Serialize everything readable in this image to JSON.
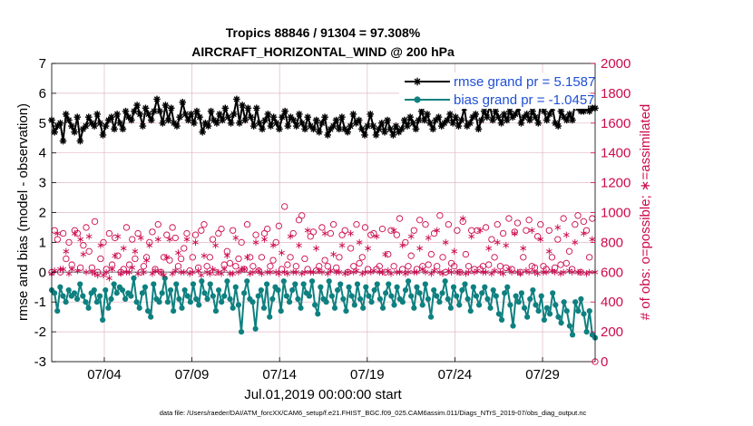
{
  "colors": {
    "rmse": "#000000",
    "bias": "#0f8080",
    "obs": "#cc0a4e",
    "legend_text": "#1f4fd6",
    "grid": "#e0b8c4",
    "zero_line": "#9aa0a6"
  },
  "footer": "data file: /Users/raeder/DAI/ATM_forcXX/CAM6_setup/f.e21.FHIST_BGC.f09_025.CAM6assim.011/Diags_NTrS_2019-07/obs_diag_output.nc",
  "chart_data": {
    "type": "line",
    "title": [
      "Tropics 88846 / 91304 = 97.308%",
      "AIRCRAFT_HORIZONTAL_WIND @ 200 hPa"
    ],
    "xlabel": "Jul.01,2019 00:00:00 start",
    "ylabel_left": "rmse and bias (model - observation)",
    "ylabel_right": "# of obs: o=possible; ∗=assimilated",
    "x_tick_labels": [
      "07/04",
      "07/09",
      "07/14",
      "07/19",
      "07/24",
      "07/29"
    ],
    "x_tick_days": [
      4,
      9,
      14,
      19,
      24,
      29
    ],
    "xlim_days": [
      1,
      32
    ],
    "ylim_left": [
      -3,
      7
    ],
    "yticks_left": [
      "-3",
      "-2",
      "-1",
      "0",
      "1",
      "2",
      "3",
      "4",
      "5",
      "6",
      "7"
    ],
    "ylim_right": [
      0,
      2000
    ],
    "yticks_right": [
      "0",
      "200",
      "400",
      "600",
      "800",
      "1000",
      "1200",
      "1400",
      "1600",
      "1800",
      "2000"
    ],
    "grid": true,
    "legend_position": "top-right",
    "legend": [
      "rmse grand pr = 5.1587",
      "bias grand pr = -1.0457"
    ],
    "series": [
      {
        "name": "rmse",
        "axis": "left",
        "marker": "star",
        "values": [
          5.1,
          4.7,
          4.9,
          5.0,
          4.4,
          5.3,
          5.1,
          4.9,
          4.7,
          5.2,
          4.4,
          4.8,
          4.9,
          5.2,
          5.0,
          4.9,
          5.3,
          5.0,
          4.6,
          4.9,
          5.1,
          5.2,
          4.8,
          5.3,
          5.0,
          4.8,
          5.4,
          5.2,
          5.1,
          5.4,
          5.6,
          5.3,
          4.9,
          5.5,
          5.3,
          5.1,
          5.4,
          5.8,
          5.4,
          5.0,
          5.6,
          5.1,
          5.5,
          5.0,
          4.9,
          5.2,
          5.7,
          5.3,
          5.1,
          5.3,
          5.0,
          5.4,
          5.2,
          4.7,
          5.0,
          4.9,
          5.4,
          5.1,
          5.0,
          5.3,
          5.1,
          5.5,
          5.2,
          5.0,
          5.3,
          5.8,
          5.0,
          5.6,
          5.1,
          5.5,
          5.2,
          4.9,
          5.5,
          5.0,
          4.8,
          5.1,
          5.3,
          4.9,
          5.2,
          5.0,
          4.8,
          5.2,
          5.4,
          4.9,
          5.2,
          5.1,
          4.9,
          5.3,
          5.0,
          4.8,
          5.2,
          4.9,
          4.8,
          5.1,
          4.7,
          5.0,
          5.2,
          4.6,
          4.8,
          4.9,
          5.1,
          4.8,
          5.2,
          4.8,
          4.7,
          4.9,
          5.3,
          5.0,
          5.1,
          4.8,
          4.6,
          4.9,
          5.3,
          4.9,
          4.6,
          4.8,
          5.0,
          4.7,
          5.1,
          4.8,
          4.6,
          4.9,
          4.7,
          4.8,
          5.1,
          4.9,
          5.2,
          5.0,
          4.8,
          5.1,
          5.4,
          5.1,
          5.3,
          5.0,
          4.8,
          5.1,
          5.2,
          4.9,
          5.0,
          5.1,
          5.3,
          5.0,
          5.2,
          4.9,
          5.1,
          5.5,
          4.9,
          5.0,
          5.2,
          5.3,
          4.8,
          5.1,
          5.4,
          5.2,
          5.6,
          5.1,
          5.4,
          5.2,
          5.0,
          5.3,
          5.1,
          5.4,
          5.2,
          5.3,
          5.5,
          5.0,
          5.2,
          5.3,
          5.1,
          5.4,
          5.2,
          5.0,
          5.8,
          5.4,
          5.1,
          5.3,
          5.5,
          5.0,
          4.9,
          5.4,
          5.2,
          5.1,
          5.3,
          5.1,
          5.7,
          5.5,
          5.4,
          5.4,
          5.5,
          5.4,
          5.5,
          5.5
        ]
      },
      {
        "name": "bias",
        "axis": "left",
        "marker": "circle",
        "values": [
          -0.6,
          -0.7,
          -1.3,
          -0.5,
          -0.8,
          -1.0,
          -0.6,
          -0.8,
          -0.7,
          -0.9,
          -0.4,
          -0.8,
          -1.0,
          -1.2,
          -0.7,
          -0.6,
          -1.0,
          -0.8,
          -1.6,
          -0.6,
          -1.2,
          -0.9,
          -0.4,
          -0.7,
          -0.5,
          -0.6,
          -0.9,
          -0.7,
          -0.8,
          -0.2,
          -1.0,
          -1.2,
          -0.7,
          -0.5,
          -1.3,
          -1.5,
          -0.4,
          -0.9,
          -1.0,
          -0.7,
          -0.2,
          -1.0,
          -0.6,
          -1.3,
          -0.4,
          -0.9,
          -1.2,
          -0.6,
          -0.8,
          -1.0,
          -0.4,
          -0.9,
          -1.1,
          -0.3,
          -0.7,
          -0.9,
          -0.4,
          -0.8,
          -1.3,
          -0.6,
          -1.0,
          -0.8,
          -0.3,
          -0.9,
          -1.2,
          -0.5,
          -1.1,
          -2.0,
          -0.7,
          -0.3,
          -0.9,
          -1.0,
          -1.9,
          -0.8,
          -0.6,
          -1.2,
          -0.4,
          -1.5,
          -0.9,
          -0.5,
          -0.6,
          -1.3,
          -0.3,
          -0.8,
          -1.0,
          -0.6,
          -0.4,
          -0.9,
          -1.2,
          -0.4,
          -0.7,
          -0.8,
          -0.3,
          -1.1,
          -1.4,
          -0.5,
          -0.9,
          -1.0,
          -0.3,
          -0.8,
          -1.2,
          -0.6,
          -0.4,
          -0.9,
          -1.3,
          -0.5,
          -0.8,
          -1.1,
          -0.4,
          -0.9,
          -1.2,
          -0.5,
          -0.8,
          -1.0,
          -0.6,
          -0.4,
          -0.9,
          -1.2,
          -0.7,
          -0.4,
          -0.8,
          -1.1,
          -0.5,
          -0.9,
          -1.0,
          -0.6,
          -0.3,
          -0.8,
          -1.2,
          -0.5,
          -0.7,
          -1.1,
          -0.4,
          -0.9,
          -1.5,
          -0.6,
          -0.8,
          -1.0,
          -0.7,
          -0.3,
          -0.9,
          -1.2,
          -0.5,
          -0.8,
          -1.1,
          -0.6,
          -0.4,
          -0.9,
          -1.3,
          -0.5,
          -0.8,
          -1.1,
          -0.7,
          -0.5,
          -0.9,
          -1.2,
          -0.6,
          -0.8,
          -1.4,
          -1.6,
          -0.7,
          -0.5,
          -1.1,
          -1.8,
          -0.8,
          -1.0,
          -0.7,
          -1.2,
          -1.5,
          -0.9,
          -0.6,
          -1.1,
          -1.3,
          -0.8,
          -1.6,
          -1.2,
          -1.4,
          -0.7,
          -1.1,
          -1.5,
          -1.7,
          -1.0,
          -1.3,
          -1.8,
          -2.1,
          -1.0,
          -1.3,
          -0.9,
          -1.4,
          -2.0,
          -1.3,
          -2.1,
          -2.2
        ]
      },
      {
        "name": "obs_possible",
        "axis": "right",
        "marker": "open-circle",
        "values": [
          600,
          880,
          820,
          600,
          860,
          690,
          800,
          650,
          880,
          860,
          630,
          780,
          900,
          740,
          630,
          940,
          600,
          690,
          800,
          620,
          860,
          650,
          830,
          710,
          600,
          620,
          900,
          650,
          820,
          690,
          860,
          600,
          640,
          700,
          800,
          870,
          620,
          920,
          600,
          700,
          850,
          680,
          900,
          830,
          640,
          690,
          760,
          860,
          610,
          700,
          850,
          630,
          880,
          920,
          640,
          700,
          820,
          600,
          860,
          890,
          650,
          740,
          660,
          880,
          640,
          690,
          800,
          620,
          920,
          700,
          640,
          850,
          610,
          700,
          860,
          890,
          640,
          680,
          800,
          910,
          620,
          1040,
          650,
          700,
          860,
          640,
          950,
          980,
          690,
          620,
          840,
          870,
          610,
          640,
          900,
          680,
          640,
          860,
          920,
          630,
          700,
          850,
          880,
          600,
          760,
          640,
          920,
          660,
          700,
          900,
          620,
          850,
          860,
          620,
          640,
          890,
          600,
          720,
          880,
          640,
          850,
          960,
          620,
          800,
          640,
          710,
          880,
          620,
          950,
          640,
          920,
          650,
          720,
          860,
          640,
          980,
          700,
          600,
          920,
          660,
          640,
          880,
          600,
          940,
          720,
          640,
          880,
          620,
          880,
          620,
          640,
          900,
          650,
          820,
          700,
          920,
          640,
          860,
          630,
          960,
          620,
          870,
          930,
          600,
          700,
          880,
          950,
          640,
          630,
          840,
          920,
          640,
          620,
          880,
          700,
          630,
          820,
          650,
          960,
          660,
          740,
          620,
          920,
          980,
          600,
          940,
          880,
          700,
          960,
          0
        ]
      },
      {
        "name": "obs_assimilated",
        "axis": "right",
        "marker": "asterisk",
        "values": [
          590,
          610,
          860,
          620,
          620,
          740,
          590,
          620,
          860,
          610,
          820,
          720,
          600,
          840,
          600,
          590,
          580,
          780,
          580,
          600,
          560,
          620,
          710,
          840,
          590,
          760,
          600,
          600,
          630,
          740,
          590,
          830,
          600,
          680,
          780,
          590,
          610,
          820,
          600,
          580,
          700,
          820,
          590,
          610,
          730,
          600,
          600,
          820,
          590,
          600,
          800,
          610,
          580,
          710,
          600,
          590,
          620,
          780,
          600,
          590,
          620,
          710,
          590,
          590,
          830,
          600,
          620,
          620,
          700,
          590,
          600,
          800,
          610,
          590,
          820,
          600,
          600,
          780,
          600,
          590,
          730,
          600,
          590,
          840,
          600,
          600,
          780,
          590,
          600,
          880,
          600,
          600,
          760,
          610,
          600,
          860,
          590,
          610,
          720,
          600,
          600,
          780,
          590,
          600,
          860,
          600,
          610,
          800,
          590,
          600,
          760,
          600,
          610,
          840,
          600,
          600,
          720,
          610,
          590,
          880,
          600,
          600,
          780,
          590,
          600,
          840,
          600,
          600,
          760,
          620,
          600,
          830,
          590,
          610,
          880,
          600,
          590,
          800,
          610,
          600,
          740,
          600,
          600,
          960,
          590,
          600,
          840,
          600,
          610,
          880,
          600,
          600,
          760,
          590,
          610,
          800,
          600,
          590,
          780,
          620,
          600,
          860,
          600,
          590,
          760,
          610,
          600,
          880,
          600,
          590,
          820,
          600,
          600,
          740,
          610,
          600,
          900,
          590,
          600,
          850,
          610,
          600,
          800,
          600,
          600,
          860,
          590,
          600,
          820,
          600
        ]
      }
    ]
  }
}
